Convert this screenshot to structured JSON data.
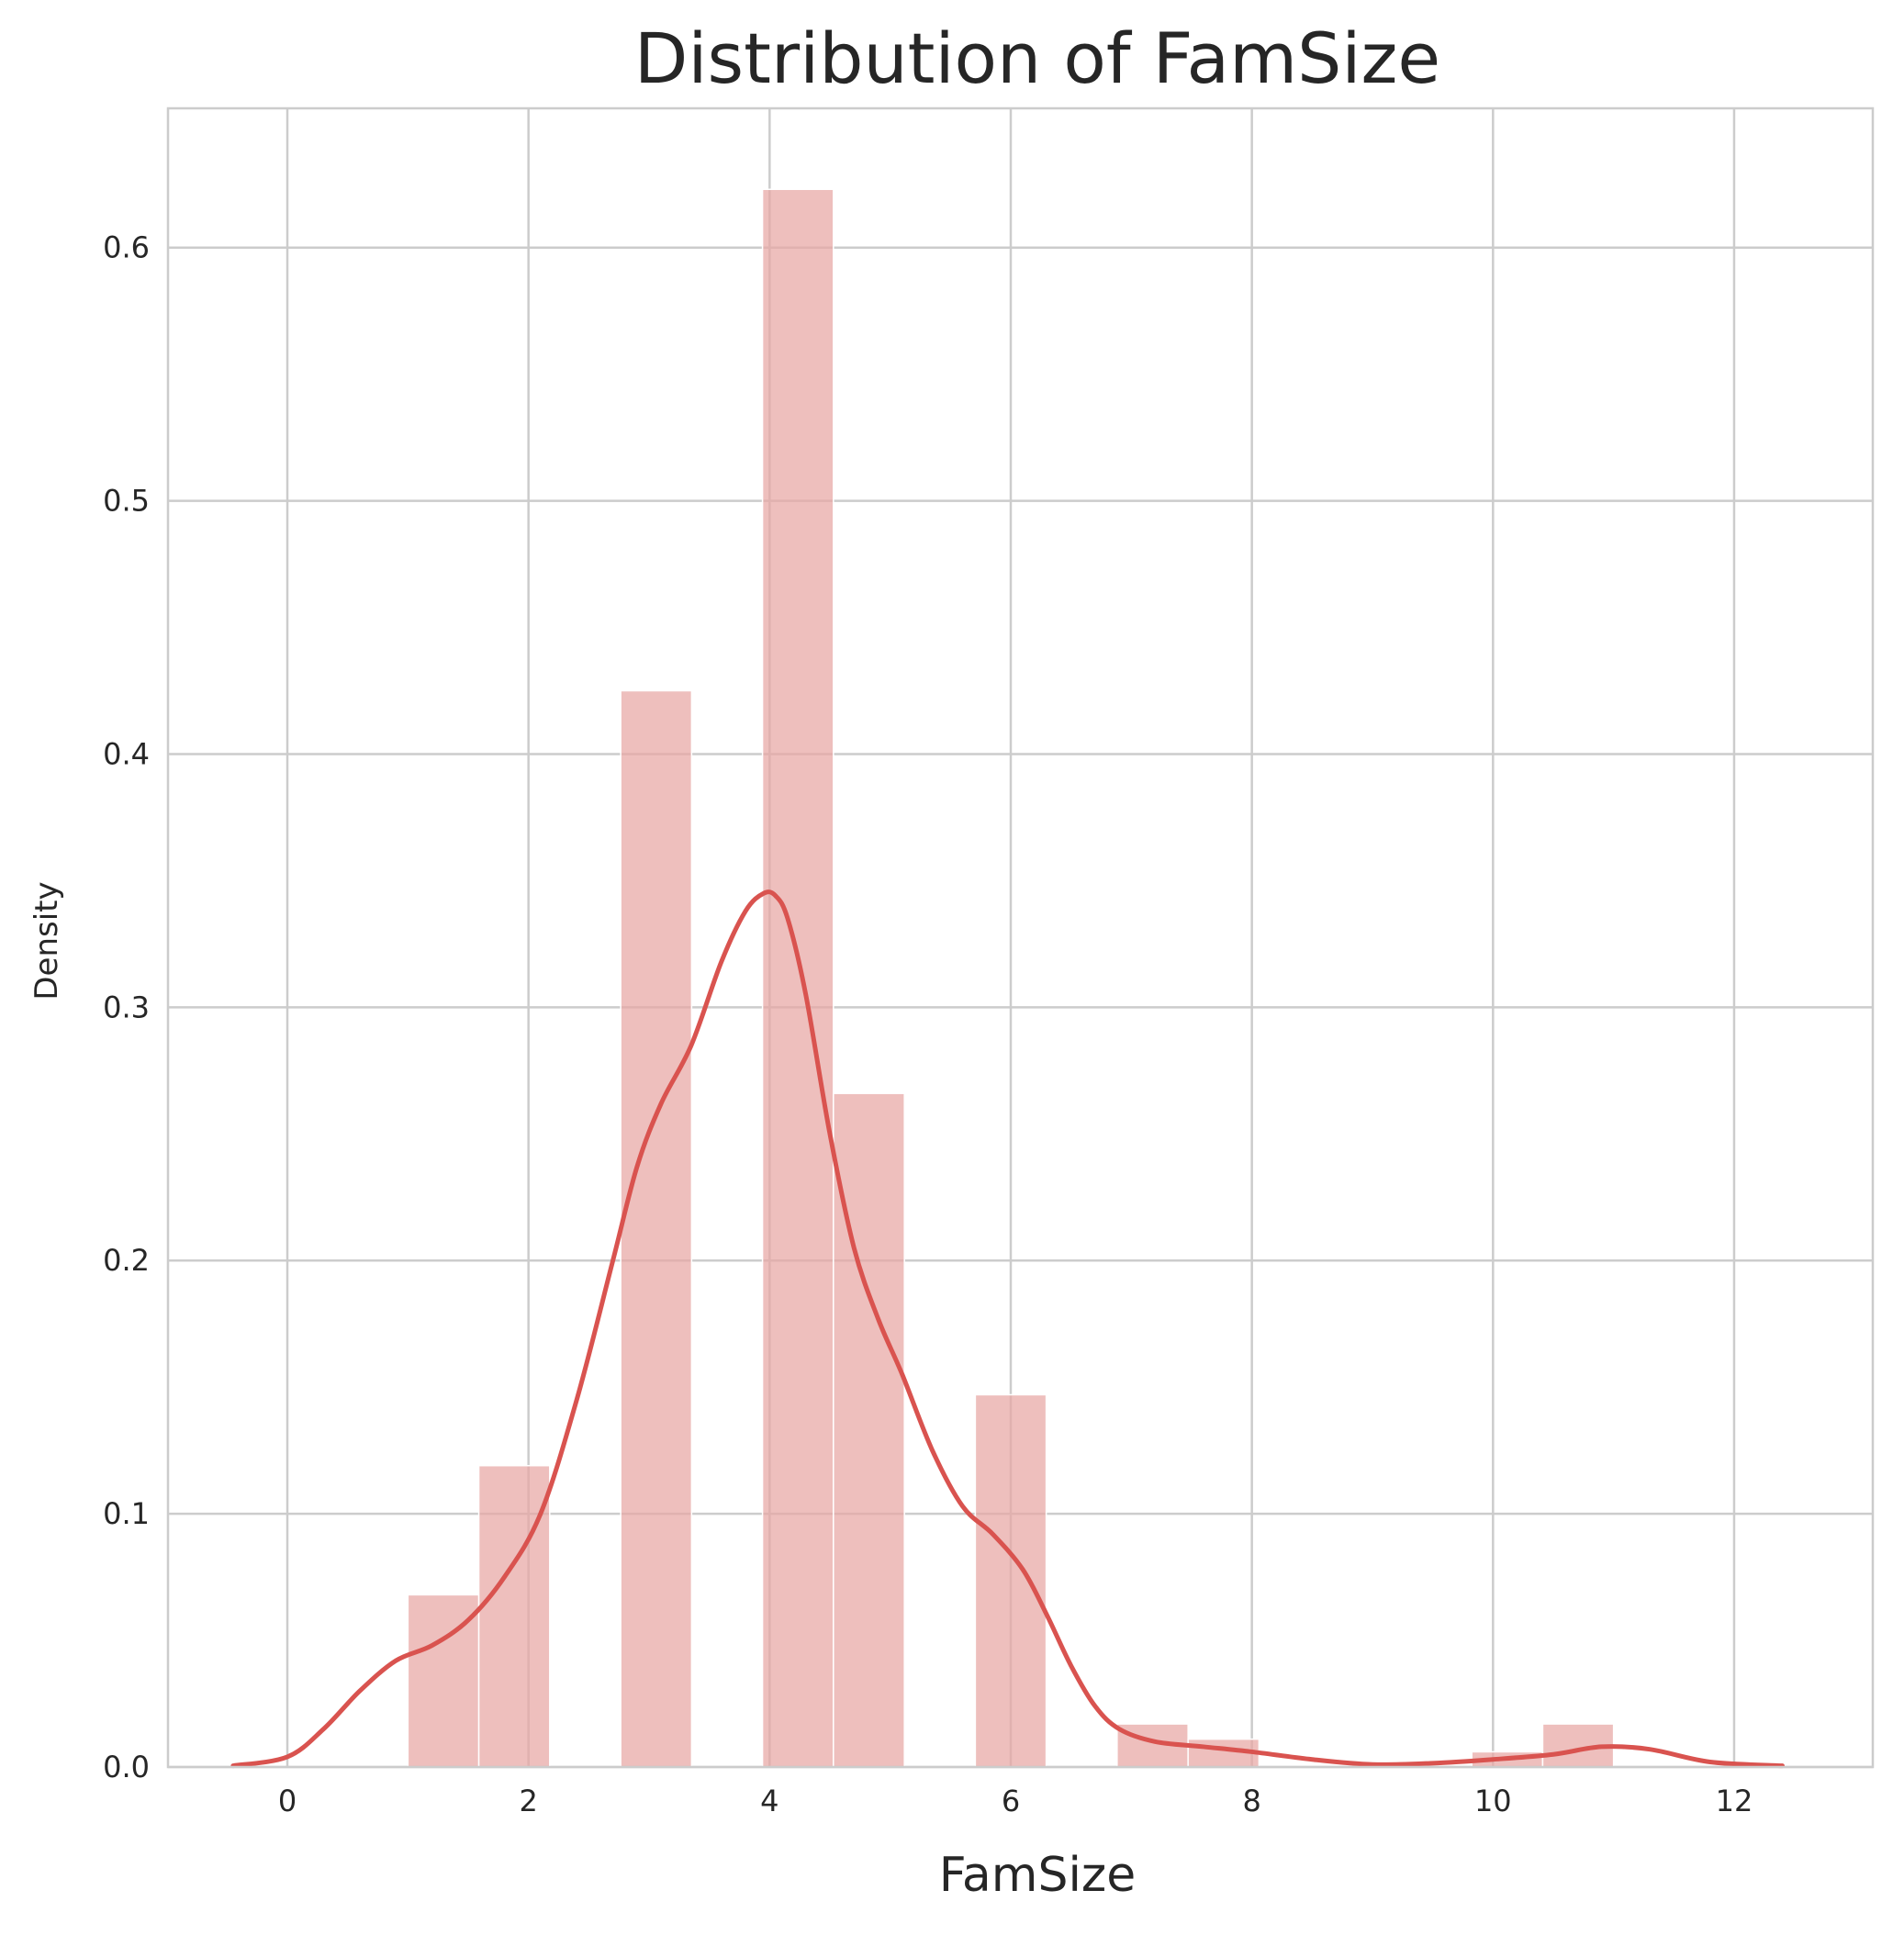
{
  "chart_data": {
    "type": "bar",
    "title": "Distribution of FamSize",
    "xlabel": "FamSize",
    "ylabel": "Density",
    "xlim": [
      -0.99,
      13.15
    ],
    "ylim": [
      0,
      0.655
    ],
    "xticks": [
      0,
      2,
      4,
      6,
      8,
      10,
      12
    ],
    "xtick_labels": [
      "0",
      "2",
      "4",
      "6",
      "8",
      "10",
      "12"
    ],
    "yticks": [
      0.0,
      0.1,
      0.2,
      0.3,
      0.4,
      0.5,
      0.6
    ],
    "ytick_labels": [
      "0.0",
      "0.1",
      "0.2",
      "0.3",
      "0.4",
      "0.5",
      "0.6"
    ],
    "grid": true,
    "colors": {
      "bar": "#e8a6a4",
      "line": "#d9534f",
      "grid": "#cccccc",
      "axes": "#cccccc"
    },
    "bars": [
      {
        "x0": 1.0,
        "x1": 1.588,
        "value": 0.068
      },
      {
        "x0": 1.588,
        "x1": 2.176,
        "value": 0.119
      },
      {
        "x0": 2.765,
        "x1": 3.353,
        "value": 0.425
      },
      {
        "x0": 3.941,
        "x1": 4.529,
        "value": 0.623
      },
      {
        "x0": 4.529,
        "x1": 5.118,
        "value": 0.266
      },
      {
        "x0": 5.706,
        "x1": 6.294,
        "value": 0.147
      },
      {
        "x0": 6.882,
        "x1": 7.471,
        "value": 0.017
      },
      {
        "x0": 7.471,
        "x1": 8.059,
        "value": 0.011
      },
      {
        "x0": 9.824,
        "x1": 10.412,
        "value": 0.006
      },
      {
        "x0": 10.412,
        "x1": 11.0,
        "value": 0.017
      }
    ],
    "kde": {
      "x": [
        -0.45,
        0.0,
        0.3,
        0.6,
        0.9,
        1.2,
        1.5,
        1.8,
        2.1,
        2.4,
        2.7,
        2.9,
        3.1,
        3.35,
        3.6,
        3.8,
        3.95,
        4.05,
        4.15,
        4.3,
        4.5,
        4.7,
        4.9,
        5.1,
        5.35,
        5.6,
        5.85,
        6.1,
        6.3,
        6.5,
        6.7,
        6.9,
        7.2,
        7.6,
        8.0,
        8.5,
        9.0,
        9.5,
        10.0,
        10.5,
        10.9,
        11.3,
        11.8,
        12.4
      ],
      "y": [
        0.0005,
        0.004,
        0.015,
        0.03,
        0.042,
        0.048,
        0.058,
        0.075,
        0.1,
        0.145,
        0.2,
        0.237,
        0.262,
        0.285,
        0.318,
        0.338,
        0.345,
        0.344,
        0.335,
        0.305,
        0.25,
        0.205,
        0.177,
        0.155,
        0.125,
        0.103,
        0.092,
        0.078,
        0.06,
        0.04,
        0.024,
        0.015,
        0.01,
        0.008,
        0.006,
        0.003,
        0.001,
        0.0015,
        0.003,
        0.005,
        0.008,
        0.007,
        0.002,
        0.0005
      ]
    }
  }
}
